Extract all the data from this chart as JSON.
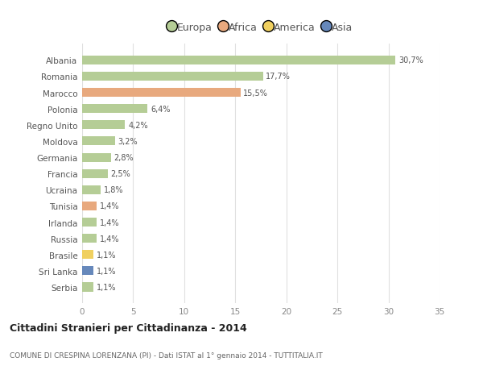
{
  "countries": [
    "Albania",
    "Romania",
    "Marocco",
    "Polonia",
    "Regno Unito",
    "Moldova",
    "Germania",
    "Francia",
    "Ucraina",
    "Tunisia",
    "Irlanda",
    "Russia",
    "Brasile",
    "Sri Lanka",
    "Serbia"
  ],
  "values": [
    30.7,
    17.7,
    15.5,
    6.4,
    4.2,
    3.2,
    2.8,
    2.5,
    1.8,
    1.4,
    1.4,
    1.4,
    1.1,
    1.1,
    1.1
  ],
  "labels": [
    "30,7%",
    "17,7%",
    "15,5%",
    "6,4%",
    "4,2%",
    "3,2%",
    "2,8%",
    "2,5%",
    "1,8%",
    "1,4%",
    "1,4%",
    "1,4%",
    "1,1%",
    "1,1%",
    "1,1%"
  ],
  "continent": [
    "Europa",
    "Europa",
    "Africa",
    "Europa",
    "Europa",
    "Europa",
    "Europa",
    "Europa",
    "Europa",
    "Africa",
    "Europa",
    "Europa",
    "America",
    "Asia",
    "Europa"
  ],
  "colors": {
    "Europa": "#b5cd96",
    "Africa": "#e8a97e",
    "America": "#f0d060",
    "Asia": "#6688bb"
  },
  "legend_colors": {
    "Europa": "#b5cd96",
    "Africa": "#e8a97e",
    "America": "#f0d060",
    "Asia": "#6688bb"
  },
  "title": "Cittadini Stranieri per Cittadinanza - 2014",
  "subtitle": "COMUNE DI CRESPINA LORENZANA (PI) - Dati ISTAT al 1° gennaio 2014 - TUTTITALIA.IT",
  "xlim": [
    0,
    35
  ],
  "xticks": [
    0,
    5,
    10,
    15,
    20,
    25,
    30,
    35
  ],
  "background_color": "#ffffff",
  "grid_color": "#e0e0e0",
  "bar_height": 0.55
}
